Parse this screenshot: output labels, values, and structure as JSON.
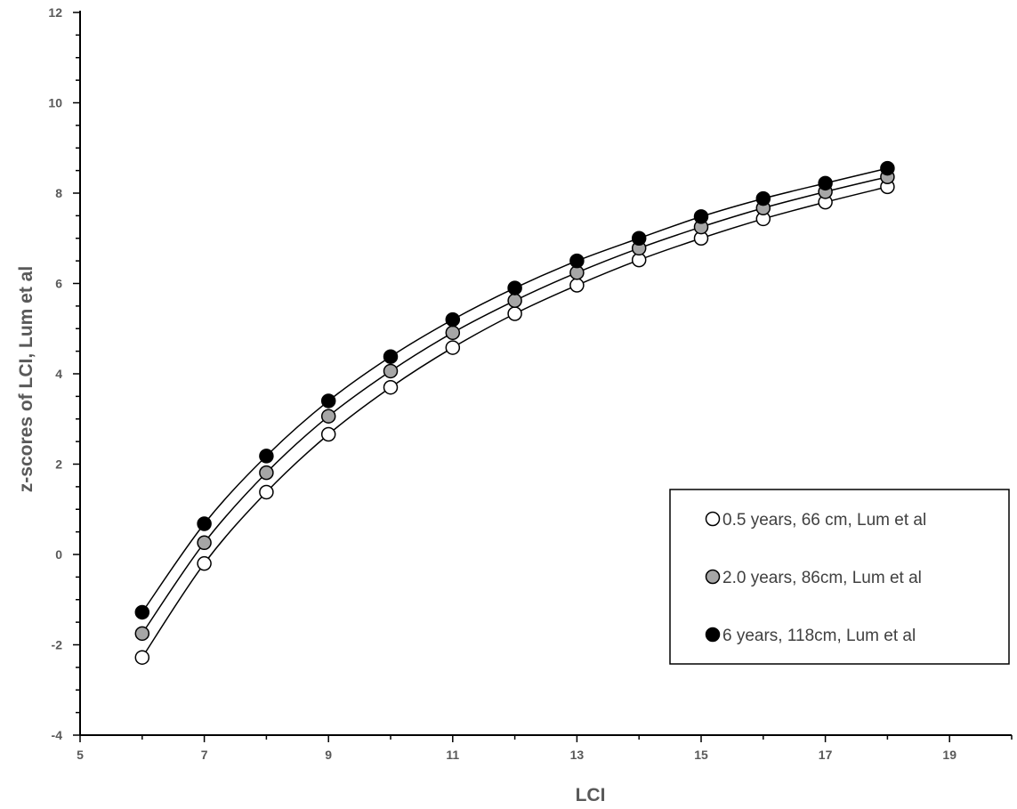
{
  "chart_data": {
    "type": "scatter",
    "title": "",
    "xlabel": "LCI",
    "ylabel": "z-scores of LCI, Lum et al",
    "xlim": [
      5,
      20
    ],
    "ylim": [
      -4,
      12
    ],
    "xticks": [
      "5",
      "7",
      "9",
      "11",
      "13",
      "15",
      "17",
      "19"
    ],
    "yticks": [
      "-4",
      "-2",
      "0",
      "2",
      "4",
      "6",
      "8",
      "10",
      "12"
    ],
    "grid": false,
    "legend_position": "bottom-right",
    "x": [
      6,
      7,
      8,
      9,
      10,
      11,
      12,
      13,
      14,
      15,
      16,
      17,
      18
    ],
    "series": [
      {
        "name": "0.5 years, 66 cm, Lum et al",
        "marker": "open-circle",
        "fill": "#ffffff",
        "values": [
          -2.28,
          -0.2,
          1.38,
          2.66,
          3.7,
          4.58,
          5.33,
          5.96,
          6.52,
          7.0,
          7.43,
          7.8,
          8.14
        ]
      },
      {
        "name": "2.0 years, 86cm, Lum et al",
        "marker": "grey-circle",
        "fill": "#a6a6a6",
        "values": [
          -1.75,
          0.26,
          1.81,
          3.06,
          4.06,
          4.91,
          5.62,
          6.24,
          6.78,
          7.25,
          7.67,
          8.03,
          8.36
        ]
      },
      {
        "name": "6 years, 118cm, Lum et al",
        "marker": "filled-circle",
        "fill": "#000000",
        "values": [
          -1.28,
          0.68,
          2.18,
          3.4,
          4.38,
          5.2,
          5.9,
          6.5,
          7.0,
          7.48,
          7.88,
          8.22,
          8.55
        ]
      }
    ]
  }
}
